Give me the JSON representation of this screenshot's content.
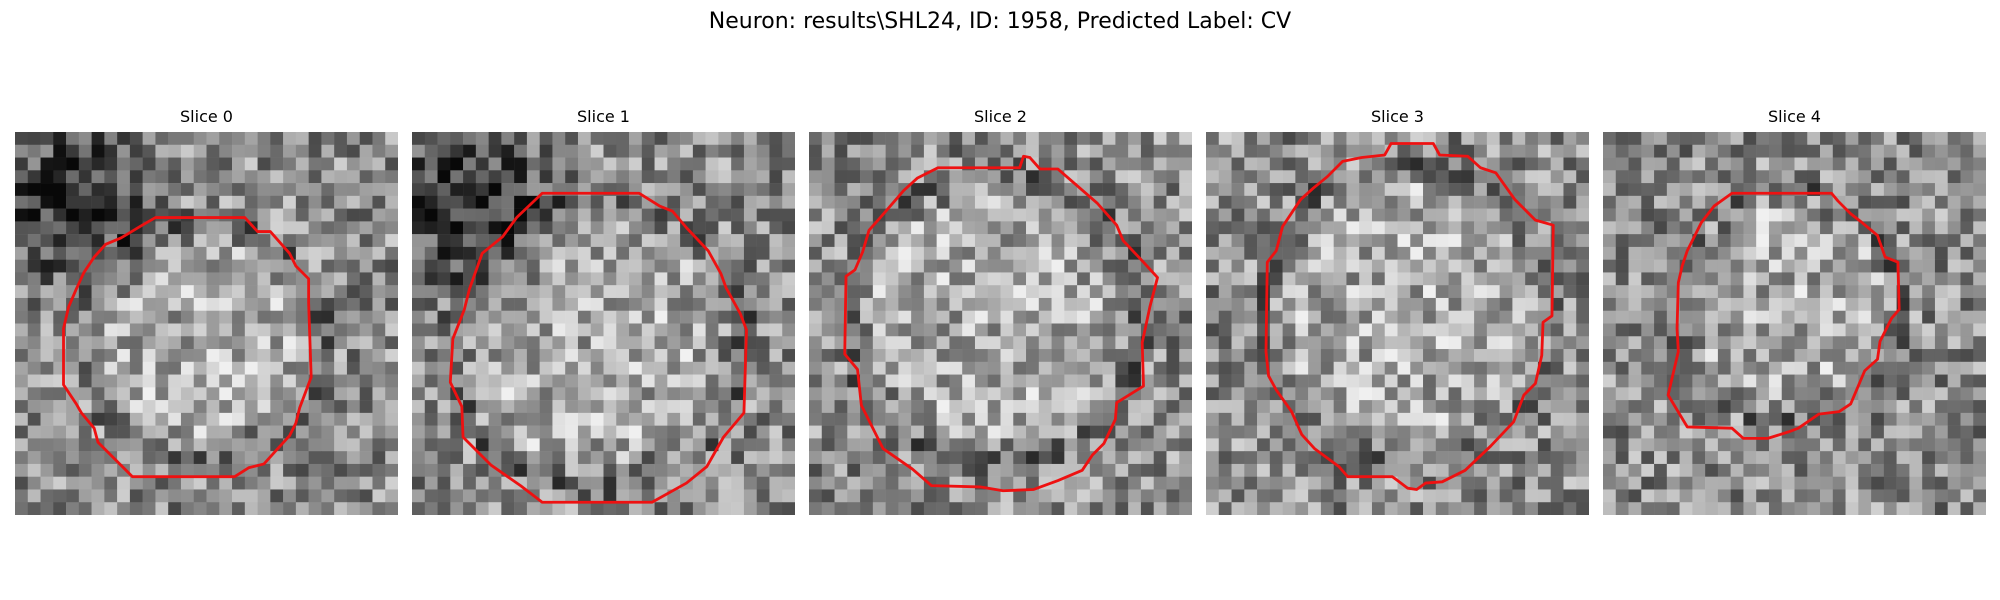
{
  "figure": {
    "title": "Neuron: results\\SHL24, ID: 1958, Predicted Label: CV"
  },
  "panels": [
    {
      "title": "Slice 0"
    },
    {
      "title": "Slice 1"
    },
    {
      "title": "Slice 2"
    },
    {
      "title": "Slice 3"
    },
    {
      "title": "Slice 4"
    }
  ],
  "colors": {
    "contour": "#ee1111",
    "background": "#ffffff"
  }
}
